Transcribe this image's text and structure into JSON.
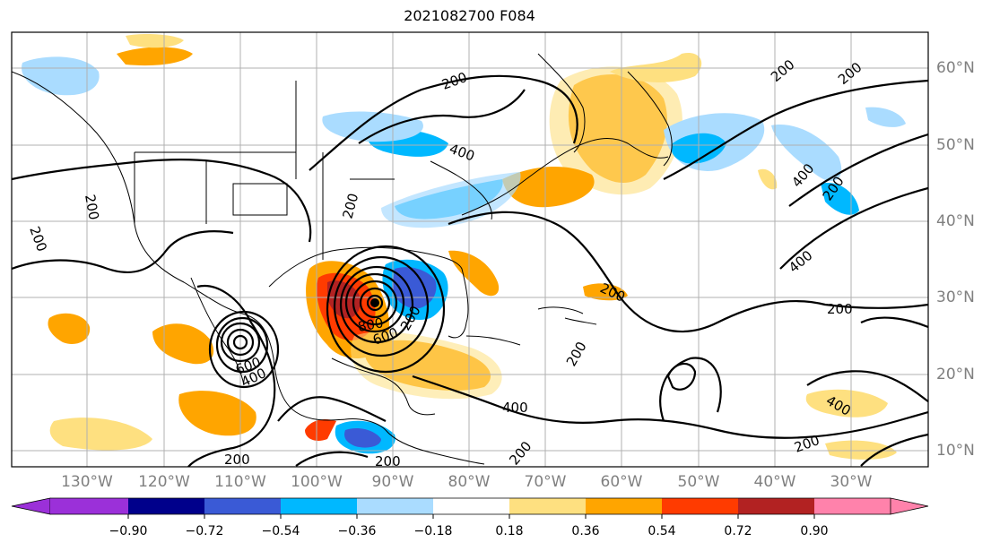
{
  "title": "2021082700 F084",
  "map": {
    "projection": "cylindrical",
    "lon_labels": [
      "130°W",
      "120°W",
      "110°W",
      "100°W",
      "90°W",
      "80°W",
      "70°W",
      "60°W",
      "50°W",
      "40°W",
      "30°W"
    ],
    "lat_labels": [
      "60°N",
      "50°N",
      "40°N",
      "30°N",
      "20°N",
      "10°N"
    ],
    "contour_labels": [
      "200",
      "200",
      "200",
      "200",
      "200",
      "200",
      "200",
      "200",
      "200",
      "200",
      "200",
      "200",
      "200",
      "200",
      "200",
      "400",
      "400",
      "400",
      "400",
      "400",
      "400",
      "600",
      "600",
      "800"
    ],
    "fill_colors": {
      "light_orange": "#fee080",
      "orange": "#ffa500",
      "red_orange": "#ff3b00",
      "dark_red": "#b22222",
      "light_blue": "#aadcff",
      "sky_blue": "#00b8ff",
      "royal_blue": "#3a5ad6",
      "navy": "#00008b"
    },
    "hurricane_centers": [
      "Gulf of Mexico",
      "Eastern Pacific off Mexico"
    ]
  },
  "colorbar": {
    "ticks": [
      "−0.90",
      "−0.72",
      "−0.54",
      "−0.36",
      "−0.18",
      "0.18",
      "0.36",
      "0.54",
      "0.72",
      "0.90"
    ],
    "colors": [
      "#9b30d9",
      "#00008b",
      "#3a5ad6",
      "#00b8ff",
      "#aadcff",
      "#ffffff",
      "#fee080",
      "#ffa500",
      "#ff3b00",
      "#b22222",
      "#ff82ab"
    ],
    "extend": "both"
  }
}
